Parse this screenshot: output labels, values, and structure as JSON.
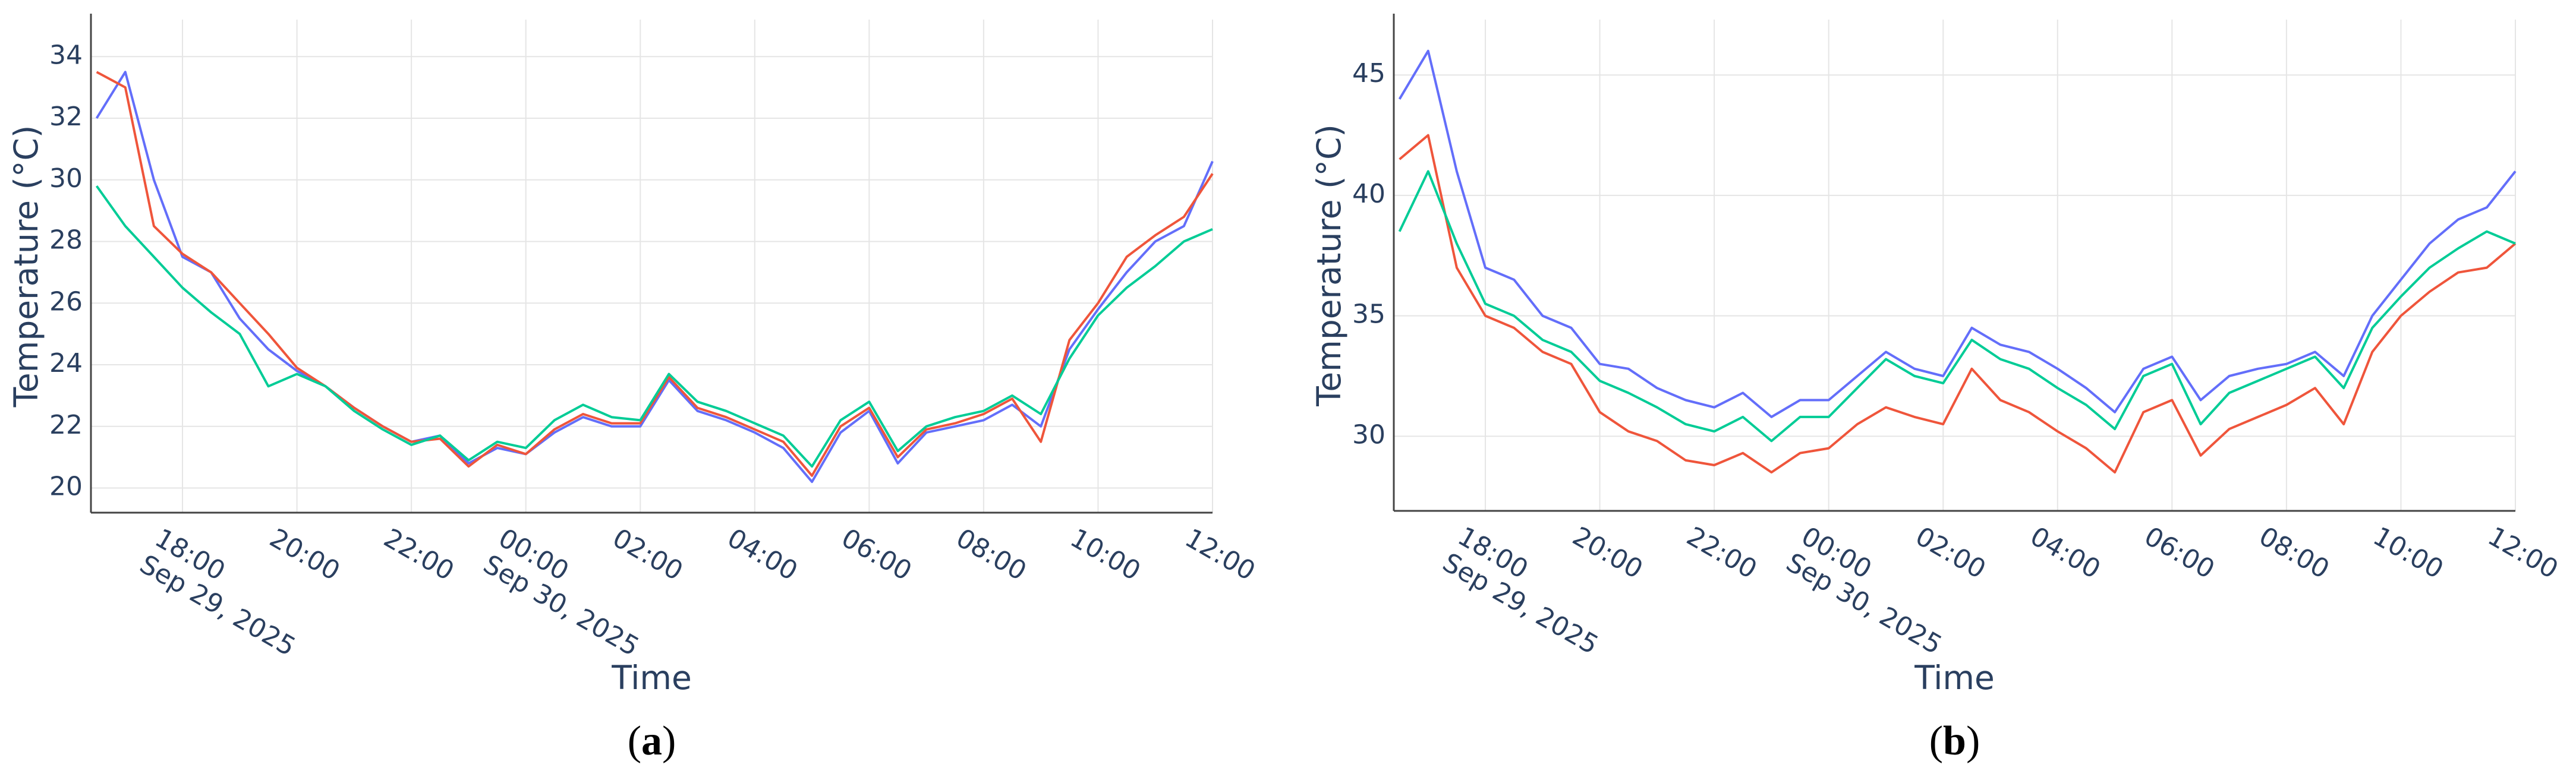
{
  "chart_data": [
    {
      "type": "line",
      "caption": "(a)",
      "xlabel": "Time",
      "ylabel": "Temperature (°C)",
      "x": [
        "2025-09-29 16:30",
        "2025-09-29 17:00",
        "2025-09-29 17:30",
        "2025-09-29 18:00",
        "2025-09-29 18:30",
        "2025-09-29 19:00",
        "2025-09-29 19:30",
        "2025-09-29 20:00",
        "2025-09-29 20:30",
        "2025-09-29 21:00",
        "2025-09-29 21:30",
        "2025-09-29 22:00",
        "2025-09-29 22:30",
        "2025-09-29 23:00",
        "2025-09-29 23:30",
        "2025-09-30 00:00",
        "2025-09-30 00:30",
        "2025-09-30 01:00",
        "2025-09-30 01:30",
        "2025-09-30 02:00",
        "2025-09-30 02:30",
        "2025-09-30 03:00",
        "2025-09-30 03:30",
        "2025-09-30 04:00",
        "2025-09-30 04:30",
        "2025-09-30 05:00",
        "2025-09-30 05:30",
        "2025-09-30 06:00",
        "2025-09-30 06:30",
        "2025-09-30 07:00",
        "2025-09-30 07:30",
        "2025-09-30 08:00",
        "2025-09-30 08:30",
        "2025-09-30 09:00",
        "2025-09-30 09:30",
        "2025-09-30 10:00",
        "2025-09-30 10:30",
        "2025-09-30 11:00",
        "2025-09-30 11:30",
        "2025-09-30 12:00"
      ],
      "series": [
        {
          "color": "#636efa",
          "values": [
            32,
            33.5,
            30,
            27.5,
            27,
            25.5,
            24.5,
            23.8,
            23.3,
            22.6,
            22,
            21.5,
            21.7,
            20.8,
            21.3,
            21.1,
            21.8,
            22.3,
            22,
            22,
            23.5,
            22.5,
            22.2,
            21.8,
            21.3,
            20.2,
            21.8,
            22.5,
            20.8,
            21.8,
            22,
            22.2,
            22.7,
            22,
            24.5,
            25.8,
            27,
            28,
            28.5,
            30.6
          ]
        },
        {
          "color": "#ef553b",
          "values": [
            33.5,
            33,
            28.5,
            27.6,
            27,
            26,
            25,
            23.9,
            23.3,
            22.6,
            22,
            21.5,
            21.6,
            20.7,
            21.4,
            21.1,
            21.9,
            22.4,
            22.1,
            22.1,
            23.6,
            22.6,
            22.3,
            21.9,
            21.5,
            20.4,
            22,
            22.6,
            21,
            21.9,
            22.1,
            22.4,
            22.9,
            21.5,
            24.8,
            26,
            27.5,
            28.2,
            28.8,
            30.2
          ]
        },
        {
          "color": "#00cc96",
          "values": [
            29.8,
            28.5,
            27.5,
            26.5,
            25.7,
            25,
            23.3,
            23.7,
            23.3,
            22.5,
            21.9,
            21.4,
            21.7,
            20.9,
            21.5,
            21.3,
            22.2,
            22.7,
            22.3,
            22.2,
            23.7,
            22.8,
            22.5,
            22.1,
            21.7,
            20.7,
            22.2,
            22.8,
            21.2,
            22,
            22.3,
            22.5,
            23,
            22.4,
            24.2,
            25.6,
            26.5,
            27.2,
            28,
            28.4
          ]
        }
      ],
      "xlim": [
        "2025-09-29 16:24",
        "2025-09-30 12:00"
      ],
      "xticks": [
        {
          "value": "2025-09-29 18:00",
          "label": "18:00\nSep 29, 2025"
        },
        {
          "value": "2025-09-29 20:00",
          "label": "20:00"
        },
        {
          "value": "2025-09-29 22:00",
          "label": "22:00"
        },
        {
          "value": "2025-09-30 00:00",
          "label": "00:00\nSep 30, 2025"
        },
        {
          "value": "2025-09-30 02:00",
          "label": "02:00"
        },
        {
          "value": "2025-09-30 04:00",
          "label": "04:00"
        },
        {
          "value": "2025-09-30 06:00",
          "label": "06:00"
        },
        {
          "value": "2025-09-30 08:00",
          "label": "08:00"
        },
        {
          "value": "2025-09-30 10:00",
          "label": "10:00"
        },
        {
          "value": "2025-09-30 12:00",
          "label": "12:00"
        }
      ],
      "ylim": [
        19.2,
        35.2
      ],
      "yticks": [
        20,
        22,
        24,
        26,
        28,
        30,
        32,
        34
      ],
      "grid": true
    },
    {
      "type": "line",
      "caption": "(b)",
      "xlabel": "Time",
      "ylabel": "Temperature (°C)",
      "x": [
        "2025-09-29 16:30",
        "2025-09-29 17:00",
        "2025-09-29 17:30",
        "2025-09-29 18:00",
        "2025-09-29 18:30",
        "2025-09-29 19:00",
        "2025-09-29 19:30",
        "2025-09-29 20:00",
        "2025-09-29 20:30",
        "2025-09-29 21:00",
        "2025-09-29 21:30",
        "2025-09-29 22:00",
        "2025-09-29 22:30",
        "2025-09-29 23:00",
        "2025-09-29 23:30",
        "2025-09-30 00:00",
        "2025-09-30 00:30",
        "2025-09-30 01:00",
        "2025-09-30 01:30",
        "2025-09-30 02:00",
        "2025-09-30 02:30",
        "2025-09-30 03:00",
        "2025-09-30 03:30",
        "2025-09-30 04:00",
        "2025-09-30 04:30",
        "2025-09-30 05:00",
        "2025-09-30 05:30",
        "2025-09-30 06:00",
        "2025-09-30 06:30",
        "2025-09-30 07:00",
        "2025-09-30 07:30",
        "2025-09-30 08:00",
        "2025-09-30 08:30",
        "2025-09-30 09:00",
        "2025-09-30 09:30",
        "2025-09-30 10:00",
        "2025-09-30 10:30",
        "2025-09-30 11:00",
        "2025-09-30 11:30",
        "2025-09-30 12:00"
      ],
      "series": [
        {
          "color": "#636efa",
          "values": [
            44,
            46,
            41,
            37,
            36.5,
            35,
            34.5,
            33,
            32.8,
            32,
            31.5,
            31.2,
            31.8,
            30.8,
            31.5,
            31.5,
            32.5,
            33.5,
            32.8,
            32.5,
            34.5,
            33.8,
            33.5,
            32.8,
            32,
            31,
            32.8,
            33.3,
            31.5,
            32.5,
            32.8,
            33,
            33.5,
            32.5,
            35,
            36.5,
            38,
            39,
            39.5,
            41
          ]
        },
        {
          "color": "#ef553b",
          "values": [
            41.5,
            42.5,
            37,
            35,
            34.5,
            33.5,
            33,
            31,
            30.2,
            29.8,
            29,
            28.8,
            29.3,
            28.5,
            29.3,
            29.5,
            30.5,
            31.2,
            30.8,
            30.5,
            32.8,
            31.5,
            31,
            30.2,
            29.5,
            28.5,
            31,
            31.5,
            29.2,
            30.3,
            30.8,
            31.3,
            32,
            30.5,
            33.5,
            35,
            36,
            36.8,
            37,
            38
          ]
        },
        {
          "color": "#00cc96",
          "values": [
            38.5,
            41,
            38,
            35.5,
            35,
            34,
            33.5,
            32.3,
            31.8,
            31.2,
            30.5,
            30.2,
            30.8,
            29.8,
            30.8,
            30.8,
            32,
            33.2,
            32.5,
            32.2,
            34,
            33.2,
            32.8,
            32,
            31.3,
            30.3,
            32.5,
            33,
            30.5,
            31.8,
            32.3,
            32.8,
            33.3,
            32,
            34.5,
            35.8,
            37,
            37.8,
            38.5,
            38
          ]
        }
      ],
      "xlim": [
        "2025-09-29 16:24",
        "2025-09-30 12:00"
      ],
      "xticks": [
        {
          "value": "2025-09-29 18:00",
          "label": "18:00\nSep 29, 2025"
        },
        {
          "value": "2025-09-29 20:00",
          "label": "20:00"
        },
        {
          "value": "2025-09-29 22:00",
          "label": "22:00"
        },
        {
          "value": "2025-09-30 00:00",
          "label": "00:00\nSep 30, 2025"
        },
        {
          "value": "2025-09-30 02:00",
          "label": "02:00"
        },
        {
          "value": "2025-09-30 04:00",
          "label": "04:00"
        },
        {
          "value": "2025-09-30 06:00",
          "label": "06:00"
        },
        {
          "value": "2025-09-30 08:00",
          "label": "08:00"
        },
        {
          "value": "2025-09-30 10:00",
          "label": "10:00"
        },
        {
          "value": "2025-09-30 12:00",
          "label": "12:00"
        }
      ],
      "ylim": [
        26.9,
        47.3
      ],
      "yticks": [
        30,
        35,
        40,
        45
      ],
      "grid": true
    }
  ]
}
